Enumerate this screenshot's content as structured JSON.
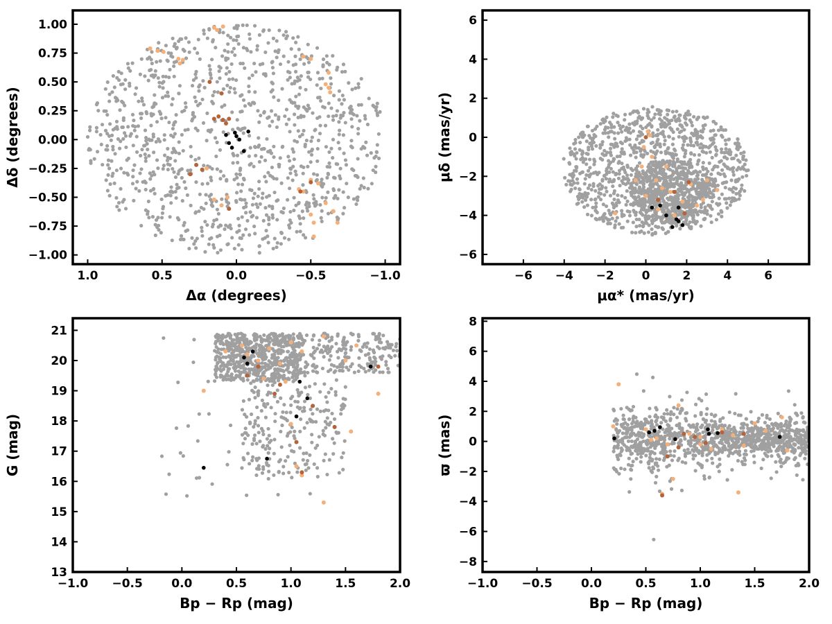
{
  "colors": {
    "field": "#a0a0a0",
    "candidate_light": "#f5b07a",
    "candidate_dark": "#b5643a",
    "member": "#000000"
  },
  "chart_data": [
    {
      "id": "sky",
      "type": "scatter",
      "xlabel": "Δα (degrees)",
      "ylabel": "Δδ (degrees)",
      "xlim": [
        1.1,
        -1.1
      ],
      "ylim": [
        -1.08,
        1.12
      ],
      "xticks": [
        1.0,
        0.5,
        0.0,
        -0.5,
        -1.0
      ],
      "xtick_labels": [
        "1.0",
        "0.5",
        "0.0",
        "−0.5",
        "−1.0"
      ],
      "yticks": [
        1.0,
        0.75,
        0.5,
        0.25,
        0.0,
        -0.25,
        -0.5,
        -0.75,
        -1.0
      ],
      "ytick_labels": [
        "1.00",
        "0.75",
        "0.50",
        "0.25",
        "0.00",
        "−0.25",
        "−0.50",
        "−0.75",
        "−1.00"
      ],
      "grid": false,
      "field_cloud": {
        "shape": "disk",
        "center": [
          0,
          0
        ],
        "radius": [
          1.0,
          1.0
        ],
        "n": 1100
      },
      "candidates_light": [
        [
          0.58,
          0.79
        ],
        [
          0.53,
          0.77
        ],
        [
          0.49,
          0.76
        ],
        [
          0.36,
          0.69
        ],
        [
          0.38,
          0.66
        ],
        [
          0.39,
          0.7
        ],
        [
          0.15,
          0.97
        ],
        [
          0.13,
          0.95
        ],
        [
          0.09,
          0.98
        ],
        [
          -0.45,
          0.72
        ],
        [
          -0.5,
          0.7
        ],
        [
          -0.62,
          0.58
        ],
        [
          -0.62,
          0.45
        ],
        [
          -0.63,
          0.41
        ],
        [
          -0.6,
          0.48
        ],
        [
          -0.42,
          -0.43
        ],
        [
          -0.45,
          -0.45
        ],
        [
          -0.5,
          -0.35
        ],
        [
          -0.55,
          -0.38
        ],
        [
          -0.6,
          -0.55
        ],
        [
          -0.65,
          -0.62
        ],
        [
          -0.68,
          -0.72
        ],
        [
          -0.5,
          -0.65
        ],
        [
          -0.52,
          -0.72
        ],
        [
          -0.52,
          -0.84
        ],
        [
          0.06,
          -0.5
        ],
        [
          0.1,
          -0.57
        ],
        [
          0.15,
          -0.52
        ],
        [
          0.2,
          -0.25
        ]
      ],
      "candidates_dark": [
        [
          0.09,
          0.17
        ],
        [
          0.05,
          0.18
        ],
        [
          0.07,
          0.14
        ],
        [
          0.12,
          0.2
        ],
        [
          0.15,
          0.18
        ],
        [
          0.1,
          0.4
        ],
        [
          0.18,
          0.5
        ],
        [
          0.27,
          -0.22
        ],
        [
          0.31,
          -0.3
        ],
        [
          0.23,
          -0.26
        ],
        [
          0.05,
          -0.6
        ],
        [
          -0.43,
          -0.45
        ],
        [
          -0.5,
          -0.37
        ]
      ],
      "members": [
        [
          0.07,
          0.04
        ],
        [
          0.01,
          0.06
        ],
        [
          -0.08,
          0.07
        ],
        [
          0.05,
          -0.03
        ],
        [
          0.03,
          -0.07
        ],
        [
          -0.02,
          0.0
        ],
        [
          -0.05,
          -0.1
        ],
        [
          0.0,
          0.03
        ]
      ]
    },
    {
      "id": "proper-motion",
      "type": "scatter",
      "xlabel": "μα* (mas/yr)",
      "ylabel": "μδ (mas/yr)",
      "xlim": [
        -8,
        8
      ],
      "ylim": [
        -6.5,
        6.5
      ],
      "xticks": [
        -6,
        -4,
        -2,
        0,
        2,
        4,
        6
      ],
      "xtick_labels": [
        "−6",
        "−4",
        "−2",
        "0",
        "2",
        "4",
        "6"
      ],
      "yticks": [
        6,
        4,
        2,
        0,
        -2,
        -4,
        -6
      ],
      "ytick_labels": [
        "6",
        "4",
        "2",
        "0",
        "−2",
        "−4",
        "−6"
      ],
      "grid": false,
      "field_cloud": {
        "shape": "disk",
        "center": [
          0.5,
          -1.7
        ],
        "radius": [
          4.6,
          3.3
        ],
        "n": 1100,
        "dense_center": [
          1.2,
          -2.8
        ],
        "dense_radius": [
          2.0,
          1.6
        ],
        "dense_n": 500
      },
      "candidates_light": [
        [
          0.1,
          0.3
        ],
        [
          0.2,
          0.1
        ],
        [
          -0.1,
          -0.5
        ],
        [
          0.3,
          -1.0
        ],
        [
          -0.2,
          -1.5
        ],
        [
          0.5,
          -2.2
        ],
        [
          1.0,
          -1.5
        ],
        [
          1.2,
          -2.8
        ],
        [
          1.8,
          -3.3
        ],
        [
          2.2,
          -2.4
        ],
        [
          2.8,
          -3.2
        ],
        [
          3.5,
          -2.7
        ],
        [
          -1.5,
          -3.9
        ],
        [
          0.0,
          -3.0
        ],
        [
          0.6,
          -3.7
        ],
        [
          1.4,
          -4.0
        ],
        [
          2.5,
          -3.5
        ],
        [
          -0.5,
          -2.2
        ],
        [
          0.8,
          -2.6
        ],
        [
          3.0,
          -2.2
        ]
      ],
      "candidates_dark": [
        [
          1.4,
          -2.8
        ],
        [
          2.1,
          -2.3
        ],
        [
          0.6,
          -3.2
        ],
        [
          1.9,
          -3.9
        ],
        [
          0.0,
          0.0
        ]
      ],
      "members": [
        [
          0.3,
          -3.6
        ],
        [
          0.7,
          -3.5
        ],
        [
          1.0,
          -4.0
        ],
        [
          1.3,
          -4.6
        ],
        [
          1.5,
          -4.2
        ],
        [
          1.6,
          -3.6
        ],
        [
          1.8,
          -4.5
        ],
        [
          1.6,
          -4.3
        ]
      ]
    },
    {
      "id": "cmd",
      "type": "scatter",
      "xlabel": "Bp − Rp (mag)",
      "ylabel": "G (mag)",
      "xlim": [
        -1.0,
        2.0
      ],
      "ylim": [
        13.0,
        21.4
      ],
      "xticks": [
        -1.0,
        -0.5,
        0.0,
        0.5,
        1.0,
        1.5,
        2.0
      ],
      "xtick_labels": [
        "−1.0",
        "−0.5",
        "0.0",
        "0.5",
        "1.0",
        "1.5",
        "2.0"
      ],
      "yticks": [
        21,
        20,
        19,
        18,
        17,
        16,
        15,
        14,
        13
      ],
      "ytick_labels": [
        "21",
        "20",
        "19",
        "18",
        "17",
        "16",
        "15",
        "14",
        "13"
      ],
      "grid": false,
      "field_cloud": {
        "shape": "cmd",
        "n": 1100
      },
      "candidates_light": [
        [
          0.55,
          20.5
        ],
        [
          0.6,
          20.2
        ],
        [
          0.7,
          20.0
        ],
        [
          0.8,
          20.4
        ],
        [
          0.9,
          19.9
        ],
        [
          1.0,
          20.6
        ],
        [
          1.1,
          20.3
        ],
        [
          0.2,
          19.0
        ],
        [
          1.3,
          15.3
        ],
        [
          1.5,
          20.0
        ],
        [
          1.55,
          17.65
        ],
        [
          1.4,
          17.8
        ],
        [
          1.0,
          17.9
        ],
        [
          1.05,
          16.5
        ],
        [
          1.1,
          16.2
        ],
        [
          0.75,
          19.4
        ],
        [
          0.95,
          19.3
        ],
        [
          1.3,
          20.8
        ],
        [
          1.8,
          18.9
        ],
        [
          0.4,
          20.3
        ],
        [
          1.6,
          20.5
        ]
      ],
      "candidates_dark": [
        [
          0.6,
          19.5
        ],
        [
          0.7,
          19.8
        ],
        [
          0.9,
          19.2
        ],
        [
          1.2,
          18.5
        ],
        [
          1.4,
          17.8
        ],
        [
          0.85,
          18.9
        ],
        [
          1.05,
          17.3
        ],
        [
          1.1,
          16.3
        ],
        [
          1.8,
          19.8
        ]
      ],
      "members": [
        [
          0.2,
          16.45
        ],
        [
          0.57,
          20.1
        ],
        [
          0.6,
          19.9
        ],
        [
          0.65,
          20.3
        ],
        [
          0.78,
          16.75
        ],
        [
          1.05,
          18.15
        ],
        [
          1.08,
          19.3
        ],
        [
          1.15,
          18.75
        ],
        [
          1.73,
          19.8
        ]
      ]
    },
    {
      "id": "parallax",
      "type": "scatter",
      "xlabel": "Bp − Rp (mag)",
      "ylabel": "ϖ (mas)",
      "xlim": [
        -1.0,
        2.0
      ],
      "ylim": [
        -8.7,
        8.2
      ],
      "xticks": [
        -1.0,
        -0.5,
        0.0,
        0.5,
        1.0,
        1.5,
        2.0
      ],
      "xtick_labels": [
        "−1.0",
        "−0.5",
        "0.0",
        "0.5",
        "1.0",
        "1.5",
        "2.0"
      ],
      "yticks": [
        8,
        6,
        4,
        2,
        0,
        -2,
        -4,
        -6,
        -8
      ],
      "ytick_labels": [
        "8",
        "6",
        "4",
        "2",
        "0",
        "−2",
        "−4",
        "−6",
        "−8"
      ],
      "grid": false,
      "field_cloud": {
        "shape": "band",
        "n": 1100
      },
      "candidates_light": [
        [
          0.25,
          3.8
        ],
        [
          0.2,
          1.0
        ],
        [
          0.5,
          0.8
        ],
        [
          0.6,
          0.2
        ],
        [
          0.7,
          -0.2
        ],
        [
          0.75,
          -2.5
        ],
        [
          0.8,
          2.4
        ],
        [
          0.9,
          0.5
        ],
        [
          1.0,
          0.3
        ],
        [
          1.1,
          -0.5
        ],
        [
          1.2,
          0.8
        ],
        [
          1.3,
          0.4
        ],
        [
          1.4,
          -0.3
        ],
        [
          1.6,
          0.7
        ],
        [
          1.8,
          -0.6
        ],
        [
          1.75,
          1.6
        ],
        [
          0.55,
          0.1
        ],
        [
          0.65,
          -3.5
        ],
        [
          1.35,
          -3.4
        ],
        [
          1.0,
          -0.2
        ],
        [
          1.5,
          1.2
        ]
      ],
      "candidates_dark": [
        [
          0.7,
          -1.0
        ],
        [
          0.8,
          -0.4
        ],
        [
          0.95,
          0.3
        ],
        [
          1.05,
          -0.1
        ],
        [
          1.2,
          0.6
        ],
        [
          1.4,
          0.5
        ],
        [
          0.65,
          -3.6
        ],
        [
          0.85,
          0.5
        ]
      ],
      "members": [
        [
          0.21,
          0.2
        ],
        [
          0.53,
          0.6
        ],
        [
          0.58,
          0.7
        ],
        [
          0.63,
          0.95
        ],
        [
          0.77,
          0.15
        ],
        [
          1.07,
          0.8
        ],
        [
          1.08,
          0.5
        ],
        [
          1.16,
          0.55
        ],
        [
          1.73,
          0.3
        ]
      ]
    }
  ]
}
